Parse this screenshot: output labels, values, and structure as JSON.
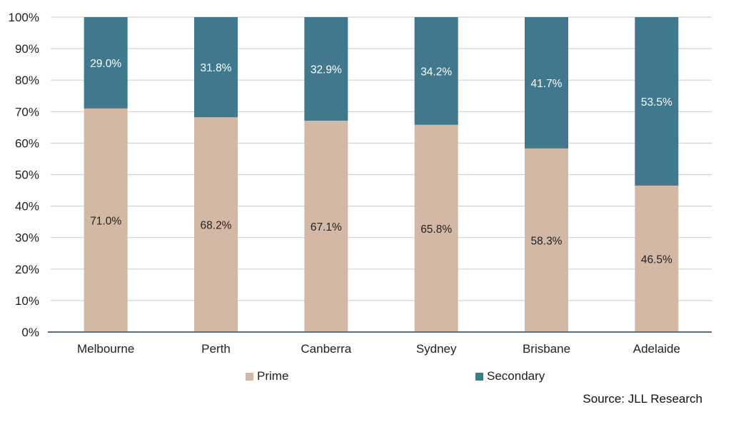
{
  "chart_data": {
    "type": "bar",
    "stacked": true,
    "categories": [
      "Melbourne",
      "Perth",
      "Canberra",
      "Sydney",
      "Brisbane",
      "Adelaide"
    ],
    "series": [
      {
        "name": "Prime",
        "values": [
          71.0,
          68.2,
          67.1,
          65.8,
          58.3,
          46.5
        ],
        "labels": [
          "71.0%",
          "68.2%",
          "67.1%",
          "65.8%",
          "58.3%",
          "46.5%"
        ],
        "color": "#d4b8a6"
      },
      {
        "name": "Secondary",
        "values": [
          29.0,
          31.8,
          32.9,
          34.2,
          41.7,
          53.5
        ],
        "labels": [
          "29.0%",
          "31.8%",
          "32.9%",
          "34.2%",
          "41.7%",
          "53.5%"
        ],
        "color": "#41788e"
      }
    ],
    "yticks": [
      "0%",
      "10%",
      "20%",
      "30%",
      "40%",
      "50%",
      "60%",
      "70%",
      "80%",
      "90%",
      "100%"
    ],
    "ylim": [
      0,
      100
    ],
    "grid": true,
    "legend_position": "bottom",
    "source": "Source: JLL Research"
  }
}
